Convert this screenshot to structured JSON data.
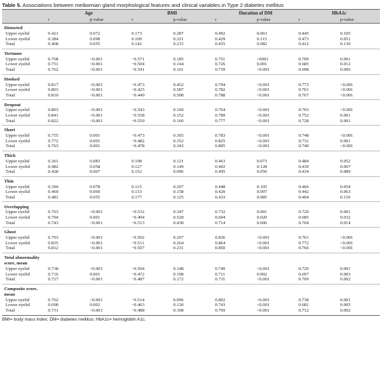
{
  "title": {
    "label": "Table 5.",
    "text": " Associations between meibomian gland morphological features and clinical variables in Type 2 diabetes mellitus"
  },
  "columns": {
    "groups": [
      "Age",
      "BMI",
      "Duration of DM",
      "HbA1c"
    ],
    "sub": [
      "r",
      "p-value"
    ]
  },
  "sections": [
    {
      "name": "Distorted",
      "rows": [
        {
          "label": "Upper eyelid",
          "values": [
            "0.421",
            "0.072",
            "0.173",
            "0.287",
            "0.492",
            "0.063",
            "0.445",
            "0.105"
          ]
        },
        {
          "label": "Lower eyelid",
          "values": [
            "0.384",
            "0.098",
            "0.109",
            "0.321",
            "0.429",
            "0.115",
            "0.473",
            "0.051"
          ]
        },
        {
          "label": "Total",
          "values": [
            "0.468",
            "0.055",
            "0.142",
            "0.215",
            "0.455",
            "0.082",
            "0.412",
            "0.136"
          ]
        }
      ]
    },
    {
      "name": "Tortuous",
      "rows": [
        {
          "label": "Upper eyelid",
          "values": [
            "0.768",
            "<0.001",
            "−0.571",
            "0.185",
            "0.751",
            "<0001",
            "0.709",
            "0.001"
          ]
        },
        {
          "label": "Lower eyelid",
          "values": [
            "0.751",
            "<0.001",
            "−0.504",
            "0.144",
            "0.726",
            "0.001",
            "0.685",
            "0.012"
          ]
        },
        {
          "label": "Total",
          "values": [
            "0.762",
            "<0.001",
            "−0.541",
            "0.161",
            "0.739",
            "<0.001",
            "0.698",
            "0.006"
          ]
        }
      ]
    },
    {
      "name": "Hooked",
      "rows": [
        {
          "label": "Upper eyelid",
          "values": [
            "0.817",
            "<0.001",
            "−0.473",
            "0.452",
            "0.794",
            "<0.001",
            "0.773",
            "<0.001"
          ]
        },
        {
          "label": "Lower eyelid",
          "values": [
            "0.803",
            "<0.001",
            "−0.425",
            "0.587",
            "0.782",
            "<0.001",
            "0.761",
            "<0.001"
          ]
        },
        {
          "label": "Total",
          "values": [
            "0.810",
            "<0.001",
            "−0.449",
            "0.508",
            "0.788",
            "<0.001",
            "0.767",
            "<0.001"
          ]
        }
      ]
    },
    {
      "name": "Dropout",
      "rows": [
        {
          "label": "Upper eyelid",
          "values": [
            "0.803",
            "<0.001",
            "−0.543",
            "0.169",
            "0.764",
            "<0.001",
            "0.703",
            "<0.001"
          ]
        },
        {
          "label": "Lower eyelid",
          "values": [
            "0.841",
            "<0.001",
            "−0.558",
            "0.152",
            "0.789",
            "<0.001",
            "0.752",
            "0.001"
          ]
        },
        {
          "label": "Total",
          "values": [
            "0.822",
            "<0.001",
            "−0.550",
            "0.160",
            "0.777",
            "<0.001",
            "0.728",
            "0.001"
          ]
        }
      ]
    },
    {
      "name": "Short",
      "rows": [
        {
          "label": "Upper eyelid",
          "values": [
            "0.755",
            "0.001",
            "−0.473",
            "0.365",
            "0.783",
            "<0.001",
            "0.748",
            "<0.001"
          ]
        },
        {
          "label": "Lower eyelid",
          "values": [
            "0.772",
            "0.001",
            "−0.482",
            "0.352",
            "0.825",
            "<0.001",
            "0.731",
            "0.001"
          ]
        },
        {
          "label": "Total",
          "values": [
            "0.763",
            "0.001",
            "−0.478",
            "0.343",
            "0.805",
            "<0.001",
            "0.740",
            "<0.001"
          ]
        }
      ]
    },
    {
      "name": "Thick",
      "rows": [
        {
          "label": "Upper eyelid",
          "values": [
            "0.361",
            "0.083",
            "0.198",
            "0.121",
            "0.463",
            "0.073",
            "0.484",
            "0.052"
          ]
        },
        {
          "label": "Lower eyelid",
          "values": [
            "0.482",
            "0.058",
            "0.127",
            "0.149",
            "0.402",
            "0.128",
            "0.439",
            "0.067"
          ]
        },
        {
          "label": "Total",
          "values": [
            "0.428",
            "0.067",
            "0.152",
            "0.096",
            "0.495",
            "0.050",
            "0.434",
            "0.089"
          ]
        }
      ]
    },
    {
      "name": "Thin",
      "rows": [
        {
          "label": "Upper eyelid",
          "values": [
            "0.394",
            "0.078",
            "0.115",
            "0.207",
            "0.448",
            "0.105",
            "0.466",
            "0.054"
          ]
        },
        {
          "label": "Lower eyelid",
          "values": [
            "0.460",
            "0.060",
            "0.133",
            "0.158",
            "0.420",
            "0.097",
            "0.442",
            "0.063"
          ]
        },
        {
          "label": "Total",
          "values": [
            "0.481",
            "0.055",
            "0.177",
            "0.125",
            "0.433",
            "0.085",
            "0.404",
            "0.110"
          ]
        }
      ]
    },
    {
      "name": "Overlapping",
      "rows": [
        {
          "label": "Upper eyelid",
          "values": [
            "0.763",
            "<0.001",
            "−0.532",
            "0.347",
            "0.732",
            "0.001",
            "0.720",
            "0.001"
          ]
        },
        {
          "label": "Lower eyelid",
          "values": [
            "0.704",
            "0.001",
            "−0.494",
            "0.528",
            "0.694",
            "0.020",
            "0.685",
            "0.032"
          ]
        },
        {
          "label": "Total",
          "values": [
            "0.743",
            "<0.001",
            "−0.513",
            "0.438",
            "0.714",
            "0.006",
            "0.704",
            "0.014"
          ]
        }
      ]
    },
    {
      "name": "Ghost",
      "rows": [
        {
          "label": "Upper eyelid",
          "values": [
            "0.793",
            "<0.001",
            "−0.502",
            "0.207",
            "0.836",
            "<0.001",
            "0.761",
            "<0.001"
          ]
        },
        {
          "label": "Lower eyelid",
          "values": [
            "0.835",
            "<0.001",
            "−0.511",
            "0.264",
            "0.864",
            "<0.001",
            "0.772",
            "<0.001"
          ]
        },
        {
          "label": "Total",
          "values": [
            "0.812",
            "<0.001",
            "−0.507",
            "0.231",
            "0.850",
            "<0.001",
            "0.766",
            "<0.001"
          ]
        }
      ]
    },
    {
      "name": "Total  abnormality score, mean",
      "lines": [
        "Total  abnormality",
        "score, mean"
      ],
      "rows": [
        {
          "label": "Upper eyelid",
          "values": [
            "0.738",
            "<0.001",
            "−0.504",
            "0.148",
            "0.749",
            "<0.001",
            "0.720",
            "0.001"
          ]
        },
        {
          "label": "Lower eyelid",
          "values": [
            "0.716",
            "0.001",
            "−0.472",
            "0.198",
            "0.711",
            "0.002",
            "0.697",
            "0.003"
          ]
        },
        {
          "label": "Total",
          "values": [
            "0.727",
            "<0.001",
            "−0.487",
            "0.172",
            "0.731",
            "<0.001",
            "0.709",
            "0.002"
          ]
        }
      ]
    },
    {
      "name": "Composite score, mean",
      "lines": [
        "Composite score,",
        "mean"
      ],
      "rows": [
        {
          "label": "Upper eyelid",
          "values": [
            "0.762",
            "<0.001",
            "−0.514",
            "0.096",
            "0.802",
            "<0.001",
            "0.738",
            "0.001"
          ]
        },
        {
          "label": "Lower eyelid",
          "values": [
            "0.698",
            "0.002",
            "−0.463",
            "0.130",
            "0.743",
            "<0.001",
            "0.681",
            "0.005"
          ]
        },
        {
          "label": "Total",
          "values": [
            "0.731",
            "<0.001",
            "−0.488",
            "0.108",
            "0.769",
            "<0.001",
            "0.712",
            "0.002"
          ]
        }
      ]
    }
  ],
  "footnote": "BMI= body mass index; DM= diabetes mellitus; HbA1c= hemoglobin A1c."
}
